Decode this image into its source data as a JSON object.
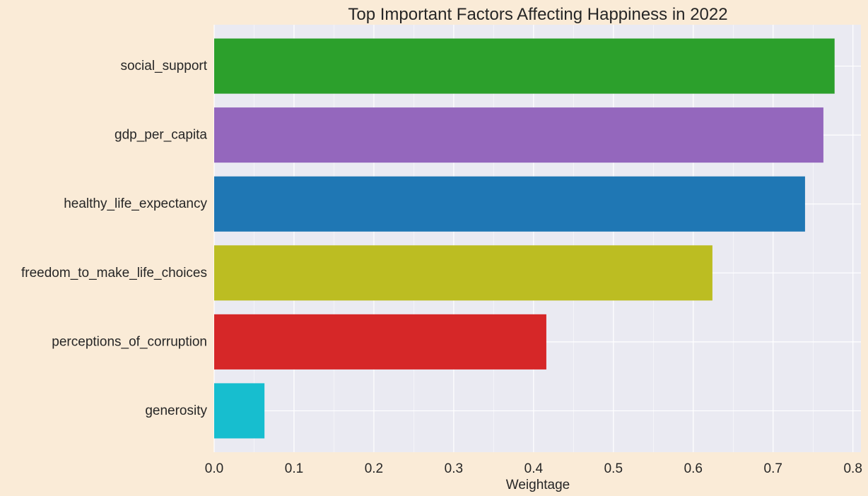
{
  "chart_data": {
    "type": "bar",
    "orientation": "horizontal",
    "title": "Top Important Factors Affecting Happiness in 2022",
    "xlabel": "Weightage",
    "ylabel": "",
    "xlim": [
      0,
      0.81
    ],
    "xticks": [
      0.0,
      0.1,
      0.2,
      0.3,
      0.4,
      0.5,
      0.6,
      0.7,
      0.8
    ],
    "xtick_labels": [
      "0.0",
      "0.1",
      "0.2",
      "0.3",
      "0.4",
      "0.5",
      "0.6",
      "0.7",
      "0.8"
    ],
    "grid": true,
    "categories": [
      "social_support",
      "gdp_per_capita",
      "healthy_life_expectancy",
      "freedom_to_make_life_choices",
      "perceptions_of_corruption",
      "generosity"
    ],
    "values": [
      0.777,
      0.763,
      0.74,
      0.624,
      0.416,
      0.063
    ],
    "colors": [
      "#2CA02C",
      "#9467BD",
      "#1F77B4",
      "#BCBD22",
      "#D62728",
      "#17BECF"
    ]
  },
  "theme": {
    "figure_background": "#FAEBD7",
    "plot_background": "#EAEAF2",
    "grid_color": "#FFFFFF",
    "text_color": "#262626"
  }
}
